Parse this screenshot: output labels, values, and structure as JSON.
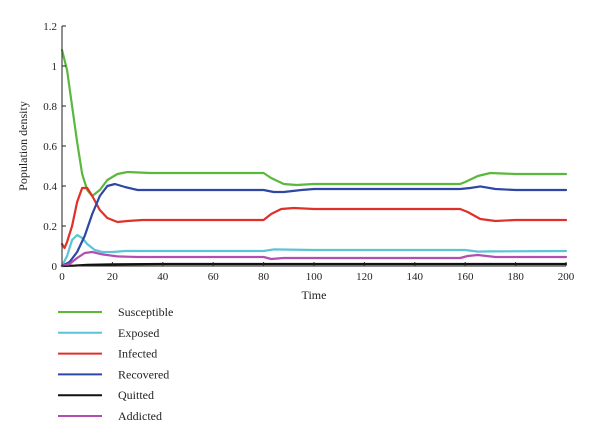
{
  "chart_data": {
    "type": "line",
    "xlabel": "Time",
    "ylabel": "Population density",
    "xlim": [
      0,
      200
    ],
    "ylim": [
      0,
      1.2
    ],
    "xticks": [
      "0",
      "20",
      "40",
      "60",
      "80",
      "100",
      "120",
      "140",
      "160",
      "180",
      "200"
    ],
    "yticks": [
      "0",
      "0.2",
      "0.4",
      "0.6",
      "0.8",
      "1",
      "1.2"
    ],
    "legend_position": "bottom-left",
    "series": [
      {
        "name": "Susceptible",
        "color": "#5ab83c",
        "points": [
          [
            0,
            1.08
          ],
          [
            2,
            0.98
          ],
          [
            4,
            0.8
          ],
          [
            6,
            0.62
          ],
          [
            8,
            0.46
          ],
          [
            10,
            0.38
          ],
          [
            12,
            0.35
          ],
          [
            15,
            0.38
          ],
          [
            18,
            0.43
          ],
          [
            22,
            0.46
          ],
          [
            26,
            0.47
          ],
          [
            35,
            0.465
          ],
          [
            50,
            0.465
          ],
          [
            70,
            0.465
          ],
          [
            80,
            0.465
          ],
          [
            83,
            0.44
          ],
          [
            88,
            0.41
          ],
          [
            93,
            0.405
          ],
          [
            100,
            0.41
          ],
          [
            130,
            0.41
          ],
          [
            158,
            0.41
          ],
          [
            160,
            0.42
          ],
          [
            165,
            0.45
          ],
          [
            170,
            0.465
          ],
          [
            180,
            0.46
          ],
          [
            200,
            0.46
          ]
        ]
      },
      {
        "name": "Exposed",
        "color": "#5cc4d6",
        "points": [
          [
            0,
            0.0
          ],
          [
            2,
            0.05
          ],
          [
            4,
            0.13
          ],
          [
            6,
            0.155
          ],
          [
            8,
            0.14
          ],
          [
            10,
            0.11
          ],
          [
            13,
            0.08
          ],
          [
            16,
            0.07
          ],
          [
            20,
            0.07
          ],
          [
            25,
            0.075
          ],
          [
            50,
            0.075
          ],
          [
            80,
            0.075
          ],
          [
            84,
            0.083
          ],
          [
            90,
            0.082
          ],
          [
            100,
            0.08
          ],
          [
            150,
            0.08
          ],
          [
            160,
            0.08
          ],
          [
            165,
            0.072
          ],
          [
            170,
            0.073
          ],
          [
            200,
            0.075
          ]
        ]
      },
      {
        "name": "Infected",
        "color": "#e0302a",
        "points": [
          [
            0,
            0.11
          ],
          [
            1,
            0.09
          ],
          [
            2,
            0.12
          ],
          [
            4,
            0.2
          ],
          [
            6,
            0.32
          ],
          [
            8,
            0.39
          ],
          [
            10,
            0.39
          ],
          [
            12,
            0.35
          ],
          [
            15,
            0.28
          ],
          [
            18,
            0.24
          ],
          [
            22,
            0.22
          ],
          [
            26,
            0.225
          ],
          [
            32,
            0.23
          ],
          [
            50,
            0.23
          ],
          [
            80,
            0.23
          ],
          [
            83,
            0.26
          ],
          [
            87,
            0.285
          ],
          [
            92,
            0.29
          ],
          [
            100,
            0.285
          ],
          [
            130,
            0.285
          ],
          [
            158,
            0.285
          ],
          [
            161,
            0.27
          ],
          [
            166,
            0.235
          ],
          [
            172,
            0.225
          ],
          [
            180,
            0.23
          ],
          [
            200,
            0.23
          ]
        ]
      },
      {
        "name": "Recovered",
        "color": "#2e47a3",
        "points": [
          [
            0,
            0.0
          ],
          [
            3,
            0.02
          ],
          [
            6,
            0.07
          ],
          [
            9,
            0.15
          ],
          [
            12,
            0.26
          ],
          [
            15,
            0.35
          ],
          [
            18,
            0.4
          ],
          [
            21,
            0.41
          ],
          [
            25,
            0.395
          ],
          [
            30,
            0.38
          ],
          [
            40,
            0.38
          ],
          [
            60,
            0.38
          ],
          [
            80,
            0.38
          ],
          [
            84,
            0.37
          ],
          [
            88,
            0.37
          ],
          [
            95,
            0.38
          ],
          [
            100,
            0.385
          ],
          [
            130,
            0.385
          ],
          [
            158,
            0.385
          ],
          [
            162,
            0.39
          ],
          [
            166,
            0.398
          ],
          [
            172,
            0.385
          ],
          [
            180,
            0.38
          ],
          [
            200,
            0.38
          ]
        ]
      },
      {
        "name": "Quitted",
        "color": "#111111",
        "points": [
          [
            0,
            0.0
          ],
          [
            5,
            0.002
          ],
          [
            10,
            0.006
          ],
          [
            20,
            0.008
          ],
          [
            40,
            0.01
          ],
          [
            80,
            0.01
          ],
          [
            100,
            0.01
          ],
          [
            160,
            0.01
          ],
          [
            200,
            0.01
          ]
        ]
      },
      {
        "name": "Addicted",
        "color": "#b24eb0",
        "points": [
          [
            0,
            0.0
          ],
          [
            3,
            0.01
          ],
          [
            6,
            0.04
          ],
          [
            9,
            0.065
          ],
          [
            12,
            0.07
          ],
          [
            16,
            0.058
          ],
          [
            22,
            0.048
          ],
          [
            30,
            0.045
          ],
          [
            50,
            0.045
          ],
          [
            80,
            0.045
          ],
          [
            83,
            0.035
          ],
          [
            88,
            0.04
          ],
          [
            100,
            0.04
          ],
          [
            158,
            0.04
          ],
          [
            161,
            0.05
          ],
          [
            165,
            0.055
          ],
          [
            172,
            0.045
          ],
          [
            200,
            0.045
          ]
        ]
      }
    ]
  }
}
